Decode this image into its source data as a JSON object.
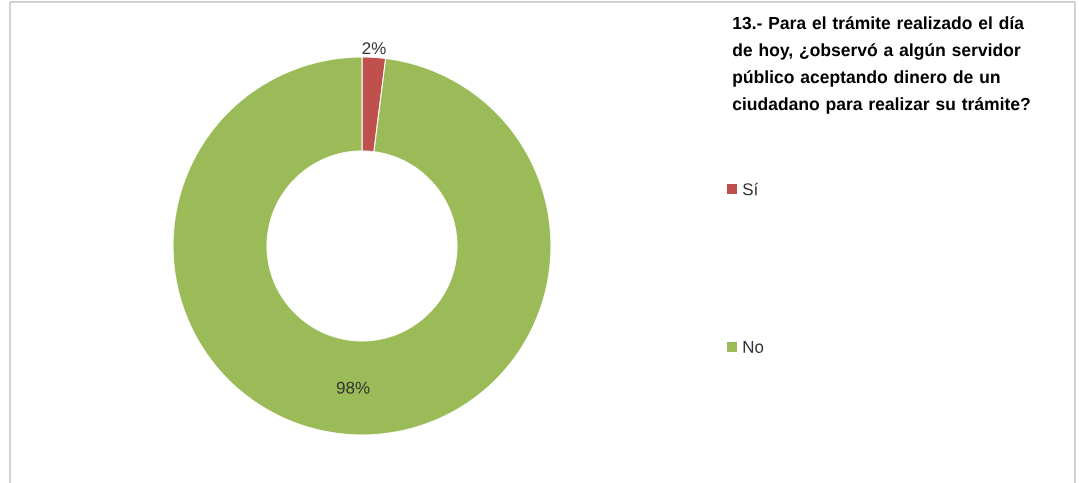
{
  "chart_data": {
    "type": "donut",
    "title": "13.- Para el trámite realizado el día de hoy, ¿observó a algún servidor público aceptando dinero de un ciudadano para realizar su trámite?",
    "categories": [
      "Sí",
      "No"
    ],
    "values": [
      2,
      98
    ],
    "colors": [
      "#c0504d",
      "#9bbb59"
    ],
    "value_labels": [
      "2%",
      "98%"
    ],
    "legend": "right"
  }
}
